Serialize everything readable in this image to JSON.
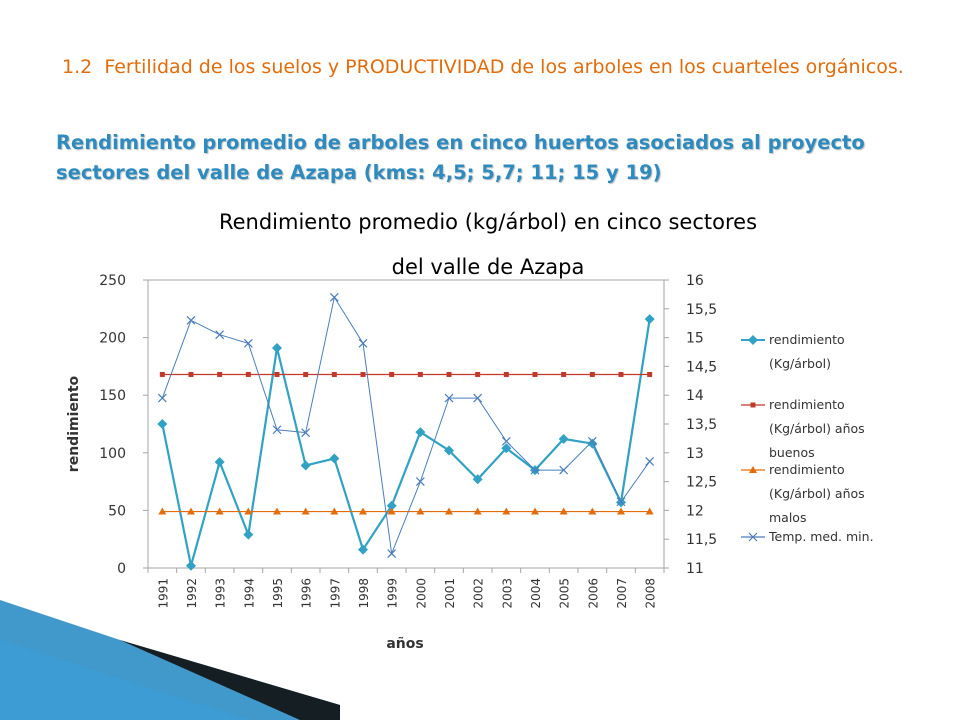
{
  "slide": {
    "heading_number": "1.2",
    "heading_text": "Fertilidad de los suelos y PRODUCTIVIDAD de los arboles en los cuarteles orgánicos",
    "heading_period": ".",
    "subtitle": "Rendimiento promedio de arboles en cinco huertos asociados al proyecto sectores del valle de Azapa (kms: 4,5; 5,7; 11; 15 y 19)"
  },
  "colors": {
    "heading": "#e36c0a",
    "subtitle": "#2e8bc0",
    "series_rendimiento": "#31a2c4",
    "series_buenos": "#c0392b",
    "series_malos": "#e46c0a",
    "series_temp": "#4a7ebb",
    "deco": "#1f86c2"
  },
  "chart_data": {
    "type": "line",
    "title_line1": "Rendimiento promedio (kg/árbol) en cinco sectores",
    "title_line2": "del valle de Azapa",
    "xlabel": "años",
    "ylabel": "rendimiento",
    "ylim": [
      0,
      250
    ],
    "y_ticks": [
      "0",
      "50",
      "100",
      "150",
      "200",
      "250"
    ],
    "y2lim": [
      11,
      16
    ],
    "y2_ticks": [
      "11",
      "11,5",
      "12",
      "12,5",
      "13",
      "13,5",
      "14",
      "14,5",
      "15",
      "15,5",
      "16"
    ],
    "categories": [
      "1991",
      "1992",
      "1993",
      "1994",
      "1995",
      "1996",
      "1997",
      "1998",
      "1999",
      "2000",
      "2001",
      "2002",
      "2003",
      "2004",
      "2005",
      "2006",
      "2007",
      "2008"
    ],
    "legend_position": "right",
    "series": [
      {
        "name_lines": [
          "rendimiento",
          "(Kg/árbol)"
        ],
        "axis": "left",
        "marker": "diamond",
        "values": [
          125,
          2,
          92,
          29,
          191,
          89,
          95,
          16,
          54,
          118,
          102,
          77,
          104,
          85,
          112,
          108,
          57,
          216
        ]
      },
      {
        "name_lines": [
          "rendimiento",
          "(Kg/árbol) años",
          "buenos"
        ],
        "axis": "left",
        "marker": "square",
        "values": [
          168,
          168,
          168,
          168,
          168,
          168,
          168,
          168,
          168,
          168,
          168,
          168,
          168,
          168,
          168,
          168,
          168,
          168
        ]
      },
      {
        "name_lines": [
          "rendimiento",
          "(Kg/árbol) años",
          "malos"
        ],
        "axis": "left",
        "marker": "triangle",
        "values": [
          49,
          49,
          49,
          49,
          49,
          49,
          49,
          49,
          49,
          49,
          49,
          49,
          49,
          49,
          49,
          49,
          49,
          49
        ]
      },
      {
        "name_lines": [
          "Temp. med. min."
        ],
        "axis": "right",
        "marker": "x",
        "values": [
          13.95,
          15.3,
          15.05,
          14.9,
          13.4,
          13.35,
          15.7,
          14.9,
          11.25,
          12.5,
          13.95,
          13.95,
          13.2,
          12.7,
          12.7,
          13.2,
          12.15,
          12.85
        ]
      }
    ]
  }
}
